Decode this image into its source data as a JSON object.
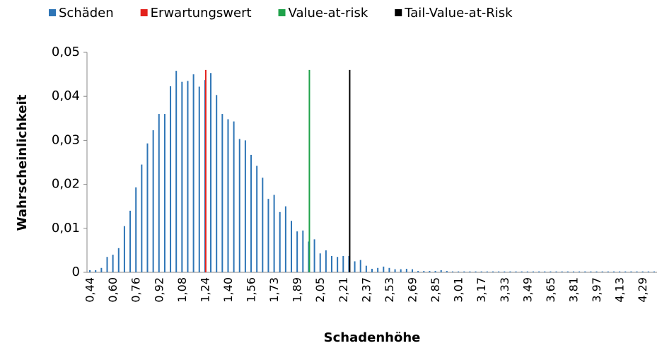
{
  "chart_data": {
    "type": "bar",
    "x_label": "Schadenhöhe",
    "y_label": "Wahrscheinlichkeit",
    "categories": [
      "0,44",
      null,
      null,
      null,
      "0,60",
      null,
      null,
      null,
      "0,76",
      null,
      null,
      null,
      "0,92",
      null,
      null,
      null,
      "1,08",
      null,
      null,
      null,
      "1,24",
      null,
      null,
      null,
      "1,40",
      null,
      null,
      null,
      "1,56",
      null,
      null,
      null,
      "1,73",
      null,
      null,
      null,
      "1,89",
      null,
      null,
      null,
      "2,05",
      null,
      null,
      null,
      "2,21",
      null,
      null,
      null,
      "2,37",
      null,
      null,
      null,
      "2,53",
      null,
      null,
      null,
      "2,69",
      null,
      null,
      null,
      "2,85",
      null,
      null,
      null,
      "3,01",
      null,
      null,
      null,
      "3,17",
      null,
      null,
      null,
      "3,33",
      null,
      null,
      null,
      "3,49",
      null,
      null,
      null,
      "3,65",
      null,
      null,
      null,
      "3,81",
      null,
      null,
      null,
      "3,97",
      null,
      null,
      null,
      "4,13",
      null,
      null,
      null,
      "4,29",
      null,
      null
    ],
    "series": [
      {
        "name": "Schäden",
        "color": "#2e75b6",
        "values": [
          0.0005,
          0.0005,
          0.001,
          0.0035,
          0.004,
          0.0055,
          0.0105,
          0.014,
          0.0193,
          0.0245,
          0.0293,
          0.0323,
          0.036,
          0.036,
          0.0423,
          0.0458,
          0.0433,
          0.0435,
          0.045,
          0.0422,
          0.0437,
          0.0453,
          0.0403,
          0.036,
          0.0348,
          0.0343,
          0.0303,
          0.03,
          0.0267,
          0.0242,
          0.0215,
          0.0167,
          0.0176,
          0.0137,
          0.015,
          0.0117,
          0.0093,
          0.0095,
          0.007,
          0.0075,
          0.0043,
          0.005,
          0.0037,
          0.0035,
          0.0037,
          0.0037,
          0.0025,
          0.0028,
          0.0015,
          0.0008,
          0.001,
          0.0013,
          0.001,
          0.0007,
          0.0007,
          0.0008,
          0.0007,
          0.0003,
          0.0003,
          0.0003,
          0.0003,
          0.0005,
          0.0003,
          0.0002,
          0.0002,
          0.0002,
          0.0002,
          0.0002,
          0.0002,
          0.0002,
          0.0002,
          0.0002,
          0.0002,
          0.0002,
          0.0002,
          0.0002,
          0.0002,
          0.0002,
          0.0002,
          0.0002,
          0.0002,
          0.0002,
          0.0002,
          0.0002,
          0.0002,
          0.0002,
          0.0002,
          0.0002,
          0.0002,
          0.0002,
          0.0002,
          0.0002,
          0.0002,
          0.0002,
          0.0002,
          0.0002,
          0.0002,
          0.0002,
          0.0002
        ]
      },
      {
        "name": "Erwartungswert",
        "color": "#e3211c",
        "values": [
          null,
          null,
          null,
          null,
          null,
          null,
          null,
          null,
          null,
          null,
          null,
          null,
          null,
          null,
          null,
          null,
          null,
          null,
          null,
          null,
          0.046,
          null,
          null,
          null,
          null,
          null,
          null,
          null,
          null,
          null,
          null,
          null,
          null,
          null,
          null,
          null,
          null,
          null,
          null,
          null,
          null,
          null,
          null,
          null,
          null,
          null,
          null,
          null,
          null,
          null,
          null,
          null,
          null,
          null,
          null,
          null,
          null,
          null,
          null,
          null,
          null,
          null,
          null,
          null,
          null,
          null,
          null,
          null,
          null,
          null,
          null,
          null,
          null,
          null,
          null,
          null,
          null,
          null,
          null,
          null,
          null,
          null,
          null,
          null,
          null,
          null,
          null,
          null,
          null,
          null,
          null,
          null,
          null,
          null,
          null,
          null,
          null,
          null,
          null
        ]
      },
      {
        "name": "Value-at-risk",
        "color": "#1fa24a",
        "values": [
          null,
          null,
          null,
          null,
          null,
          null,
          null,
          null,
          null,
          null,
          null,
          null,
          null,
          null,
          null,
          null,
          null,
          null,
          null,
          null,
          null,
          null,
          null,
          null,
          null,
          null,
          null,
          null,
          null,
          null,
          null,
          null,
          null,
          null,
          null,
          null,
          null,
          null,
          0.046,
          null,
          null,
          null,
          null,
          null,
          null,
          null,
          null,
          null,
          null,
          null,
          null,
          null,
          null,
          null,
          null,
          null,
          null,
          null,
          null,
          null,
          null,
          null,
          null,
          null,
          null,
          null,
          null,
          null,
          null,
          null,
          null,
          null,
          null,
          null,
          null,
          null,
          null,
          null,
          null,
          null,
          null,
          null,
          null,
          null,
          null,
          null,
          null,
          null,
          null,
          null,
          null,
          null,
          null,
          null,
          null,
          null,
          null,
          null,
          null
        ]
      },
      {
        "name": "Tail-Value-at-Risk",
        "color": "#000000",
        "values": [
          null,
          null,
          null,
          null,
          null,
          null,
          null,
          null,
          null,
          null,
          null,
          null,
          null,
          null,
          null,
          null,
          null,
          null,
          null,
          null,
          null,
          null,
          null,
          null,
          null,
          null,
          null,
          null,
          null,
          null,
          null,
          null,
          null,
          null,
          null,
          null,
          null,
          null,
          null,
          null,
          null,
          null,
          null,
          null,
          null,
          0.046,
          null,
          null,
          null,
          null,
          null,
          null,
          null,
          null,
          null,
          null,
          null,
          null,
          null,
          null,
          null,
          null,
          null,
          null,
          null,
          null,
          null,
          null,
          null,
          null,
          null,
          null,
          null,
          null,
          null,
          null,
          null,
          null,
          null,
          null,
          null,
          null,
          null,
          null,
          null,
          null,
          null,
          null,
          null,
          null,
          null,
          null,
          null,
          null,
          null,
          null,
          null,
          null,
          null
        ]
      }
    ],
    "ylim": [
      0,
      0.05
    ],
    "yticks": [
      0,
      {
        "value": 0.01,
        "label": "0,01"
      },
      {
        "value": 0.02,
        "label": "0,02"
      },
      {
        "value": 0.03,
        "label": "0,03"
      },
      {
        "value": 0.04,
        "label": "0,04"
      },
      {
        "value": 0.05,
        "label": "0,05"
      }
    ],
    "legend": "top",
    "grid": false
  }
}
